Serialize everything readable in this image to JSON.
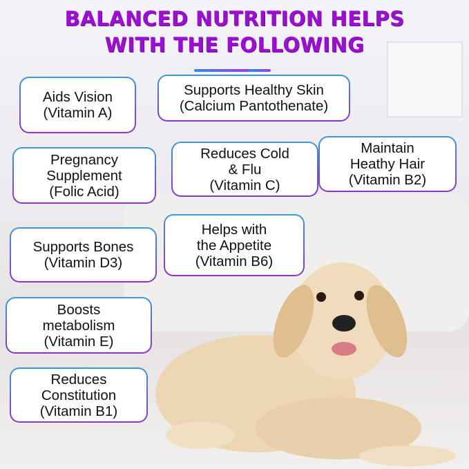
{
  "title": {
    "line1": "BALANCED NUTRITION HELPS",
    "line2": "WITH THE FOLLOWING"
  },
  "benefits": [
    {
      "lines": [
        "Aids Vision",
        "(Vitamin A)"
      ]
    },
    {
      "lines": [
        "Supports Healthy Skin",
        "(Calcium Pantothenate)"
      ]
    },
    {
      "lines": [
        "Pregnancy",
        "Supplement",
        "(Folic Acid)"
      ]
    },
    {
      "lines": [
        "Reduces Cold",
        "& Flu",
        "(Vitamin C)"
      ]
    },
    {
      "lines": [
        "Maintain",
        "Heathy Hair",
        "(Vitamin B2)"
      ]
    },
    {
      "lines": [
        "Supports Bones",
        "(Vitamin D3)"
      ]
    },
    {
      "lines": [
        "Helps with",
        "the Appetite",
        "(Vitamin B6)"
      ]
    },
    {
      "lines": [
        "Boosts",
        "metabolism",
        "(Vitamin E)"
      ]
    },
    {
      "lines": [
        "Reduces",
        "Constitution",
        "(Vitamin B1)"
      ]
    }
  ],
  "colors": {
    "title": "#9a10cf",
    "border_top": "#3a98d8",
    "border_bottom": "#8d33c8"
  }
}
